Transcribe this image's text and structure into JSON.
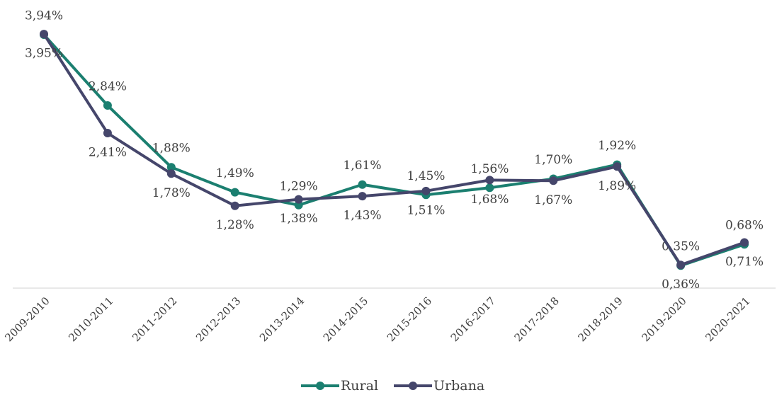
{
  "chart_data": {
    "type": "line",
    "categories": [
      "2009-2010",
      "2010-2011",
      "2011-2012",
      "2012-2013",
      "2013-2014",
      "2014-2015",
      "2015-2016",
      "2016-2017",
      "2017-2018",
      "2018-2019",
      "2019-2020",
      "2020-2021"
    ],
    "series": [
      {
        "name": "Rural",
        "color": "#1b7f70",
        "values": [
          3.94,
          2.84,
          1.88,
          1.49,
          1.29,
          1.61,
          1.45,
          1.56,
          1.7,
          1.92,
          0.35,
          0.68
        ],
        "value_labels": [
          "3,94%",
          "2,84%",
          "1,88%",
          "1,49%",
          "1,29%",
          "1,61%",
          "1,45%",
          "1,56%",
          "1,70%",
          "1,92%",
          "0,35%",
          "0,68%"
        ]
      },
      {
        "name": "Urbana",
        "color": "#45466b",
        "values": [
          3.95,
          2.41,
          1.78,
          1.28,
          1.38,
          1.43,
          1.51,
          1.68,
          1.67,
          1.89,
          0.36,
          0.71
        ],
        "value_labels": [
          "3,95%",
          "2,41%",
          "1,78%",
          "1,28%",
          "1,38%",
          "1,43%",
          "1,51%",
          "1,68%",
          "1,67%",
          "1,89%",
          "0,36%",
          "0,71%"
        ]
      }
    ],
    "ylim": [
      0,
      4
    ],
    "legend": "bottom"
  }
}
